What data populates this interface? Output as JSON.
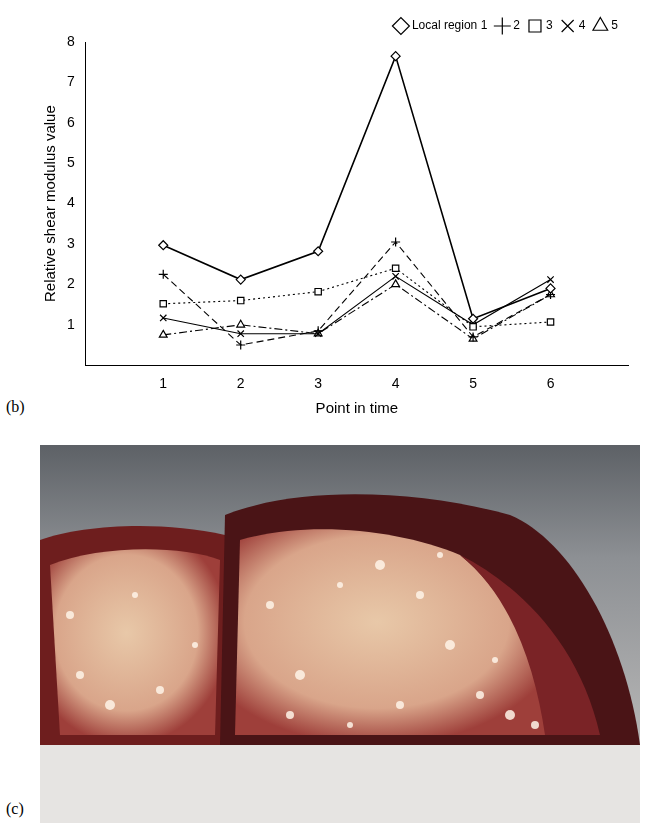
{
  "chart_data": {
    "type": "line",
    "x_label": "Point in time",
    "y_label": "Relative shear modulus value",
    "x": [
      1,
      2,
      3,
      4,
      5,
      6
    ],
    "series": [
      {
        "name": "Local region 1",
        "color": "#000000",
        "marker": "diamond",
        "line_style": "solid",
        "values": [
          2.97,
          2.12,
          2.82,
          7.65,
          1.15,
          1.9
        ]
      },
      {
        "name": "2",
        "color": "#000000",
        "marker": "plus",
        "line_style": "dashed",
        "values": [
          2.25,
          0.5,
          0.85,
          3.05,
          0.7,
          1.75
        ]
      },
      {
        "name": "3",
        "color": "#000000",
        "marker": "square",
        "line_style": "dotted",
        "values": [
          1.52,
          1.6,
          1.82,
          2.4,
          0.95,
          1.07
        ]
      },
      {
        "name": "4",
        "color": "#000000",
        "marker": "x",
        "line_style": "solid",
        "values": [
          1.17,
          0.78,
          0.78,
          2.2,
          1.0,
          2.12
        ]
      },
      {
        "name": "5",
        "color": "#000000",
        "marker": "triangle",
        "line_style": "dashdot",
        "values": [
          0.75,
          1.0,
          0.78,
          2.0,
          0.65,
          1.75
        ]
      }
    ],
    "xlim": [
      0,
      7
    ],
    "xticks": [
      1,
      2,
      3,
      4,
      5,
      6
    ],
    "ylim": [
      0,
      8
    ],
    "yticks": [
      1,
      2,
      3,
      4,
      5,
      6,
      7,
      8
    ],
    "grid": false,
    "legend": "upper right"
  },
  "panel_labels": {
    "chart": "(b)",
    "photo": "(c)"
  }
}
